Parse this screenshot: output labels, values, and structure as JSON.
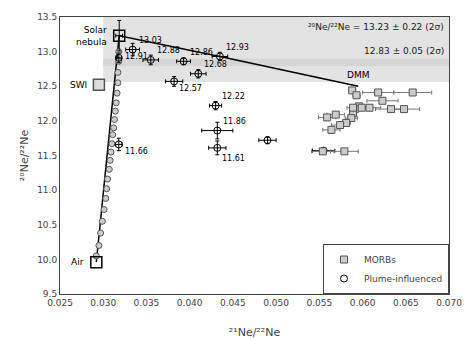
{
  "chart_data": {
    "type": "scatter",
    "xlabel": "²¹Ne/²²Ne",
    "ylabel": "²⁰Ne/²²Ne",
    "xlim": [
      0.025,
      0.07
    ],
    "ylim": [
      9.5,
      13.5
    ],
    "xticks": [
      0.025,
      {
        "value": 0.03,
        "label": "0.030"
      },
      0.035,
      {
        "value": 0.04,
        "label": "0.040"
      },
      0.045,
      {
        "value": 0.05,
        "label": "0.050"
      },
      0.055,
      {
        "value": 0.06,
        "label": "0.060"
      },
      0.065,
      {
        "value": 0.07,
        "label": "0.070"
      }
    ],
    "yticks": [
      9.5,
      {
        "value": 10,
        "label": "10.0"
      },
      10.5,
      {
        "value": 11,
        "label": "11.0"
      },
      11.5,
      {
        "value": 12,
        "label": "12.0"
      },
      12.5,
      {
        "value": 13,
        "label": "13.0"
      },
      13.5
    ],
    "grid": false,
    "legend": "lower right",
    "bands": [
      {
        "x_start": 0.03,
        "y": [
          12.79,
          13.5
        ],
        "color": "#c8c8c8",
        "label": "²⁰Ne/²²Ne = 13.23 ± 0.22 (2σ)"
      },
      {
        "x_start": 0.03,
        "y": [
          12.56,
          12.9
        ],
        "color": "#c8c8c8",
        "label": "12.83 ± 0.05 (2σ)"
      }
    ],
    "series": [
      {
        "type": "line",
        "color": "#000000",
        "x": [
          0.03185,
          0.0292
        ],
        "y": [
          13.23,
          9.96
        ]
      },
      {
        "type": "line",
        "color": "#000000",
        "x": [
          0.03185,
          0.0435,
          0.0595
        ],
        "y": [
          13.23,
          12.93,
          12.5
        ],
        "label": "DMM"
      },
      {
        "type": "scatter",
        "marker": "circle",
        "color": "#cccccc",
        "x": [
          0.0292,
          0.0295,
          0.0297,
          0.0299,
          0.0301,
          0.0303,
          0.0304,
          0.0305,
          0.0307,
          0.0308,
          0.0309,
          0.031,
          0.0311,
          0.0312,
          0.0313,
          0.0314,
          0.0315,
          0.0316,
          0.0317,
          0.0317,
          0.0318,
          0.0318
        ],
        "y": [
          10.05,
          10.2,
          10.38,
          10.55,
          10.72,
          10.88,
          11.02,
          11.16,
          11.3,
          11.43,
          11.55,
          11.67,
          11.8,
          11.9,
          12.02,
          12.14,
          12.26,
          12.4,
          12.55,
          12.7,
          12.86,
          13.0
        ]
      },
      {
        "name": "Plume-influenced",
        "type": "scatter",
        "marker": "circle-open",
        "color": "#000000",
        "x": [
          0.0318,
          0.0334,
          0.0355,
          0.0382,
          0.041,
          0.0435,
          0.0393,
          0.0318,
          0.043,
          0.0432,
          0.0432,
          0.049,
          0.0555
        ],
        "y": [
          12.91,
          13.03,
          12.88,
          12.57,
          12.68,
          12.93,
          12.86,
          11.66,
          12.22,
          11.86,
          11.61,
          11.72,
          11.57
        ],
        "xerr": [
          0.0003,
          0.0008,
          0.0009,
          0.001,
          0.0009,
          0.0009,
          0.0008,
          0.0004,
          0.0007,
          0.0018,
          0.001,
          0.001,
          0.0013
        ],
        "yerr": [
          0.07,
          0.09,
          0.07,
          0.07,
          0.06,
          0.06,
          0.05,
          0.09,
          0.06,
          0.12,
          0.1,
          0.05,
          0.04
        ],
        "value_labels": [
          "12.91",
          "13.03",
          "12.88",
          "12.57",
          "12.68",
          "12.93",
          "12.86",
          "11.66",
          "12.22",
          "11.86",
          "11.61",
          null,
          null
        ]
      },
      {
        "name": "MORBs",
        "type": "scatter",
        "marker": "square",
        "color": "#cccccc",
        "x": [
          0.0588,
          0.0593,
          0.0596,
          0.0591,
          0.0589,
          0.0587,
          0.0581,
          0.0589,
          0.0599,
          0.0608,
          0.0618,
          0.0623,
          0.0633,
          0.0648,
          0.0658,
          0.0569,
          0.0574,
          0.0564,
          0.0559,
          0.0554,
          0.0579
        ],
        "y": [
          12.44,
          12.37,
          12.21,
          12.17,
          12.11,
          12.04,
          11.97,
          12.19,
          12.19,
          12.19,
          12.41,
          12.29,
          12.17,
          12.17,
          12.41,
          12.09,
          11.94,
          11.87,
          12.05,
          11.56,
          11.56
        ],
        "xerr": [
          0.0004,
          0.0004,
          0.0004,
          0.0004,
          0.0004,
          0.0007,
          0.0005,
          0.0007,
          0.0007,
          0.0013,
          0.0018,
          0.0018,
          0.0018,
          0.0018,
          0.0022,
          0.001,
          0.001,
          0.001,
          0.001,
          0.0013,
          0.0016
        ],
        "yerr": [
          0.04,
          0.04,
          0.04,
          0.04,
          0.04,
          0.04,
          0.04,
          0.04,
          0.04,
          0.04,
          0.04,
          0.04,
          0.04,
          0.04,
          0.04,
          0.04,
          0.04,
          0.04,
          0.04,
          0.04,
          0.04
        ]
      },
      {
        "type": "scatter",
        "marker": "square-open",
        "color": "#000000",
        "x": [
          0.03185
        ],
        "y": [
          13.23
        ],
        "xerr": [
          0.0004
        ],
        "yerr": [
          0.22
        ],
        "label": "Solar\nnebula"
      },
      {
        "type": "scatter",
        "marker": "square",
        "color": "#dddddd",
        "x": [
          0.0295
        ],
        "y": [
          12.52
        ],
        "label": "SWI"
      },
      {
        "type": "scatter",
        "marker": "square-open",
        "color": "#000000",
        "x": [
          0.0292
        ],
        "y": [
          9.96
        ],
        "label": "Air"
      }
    ]
  }
}
